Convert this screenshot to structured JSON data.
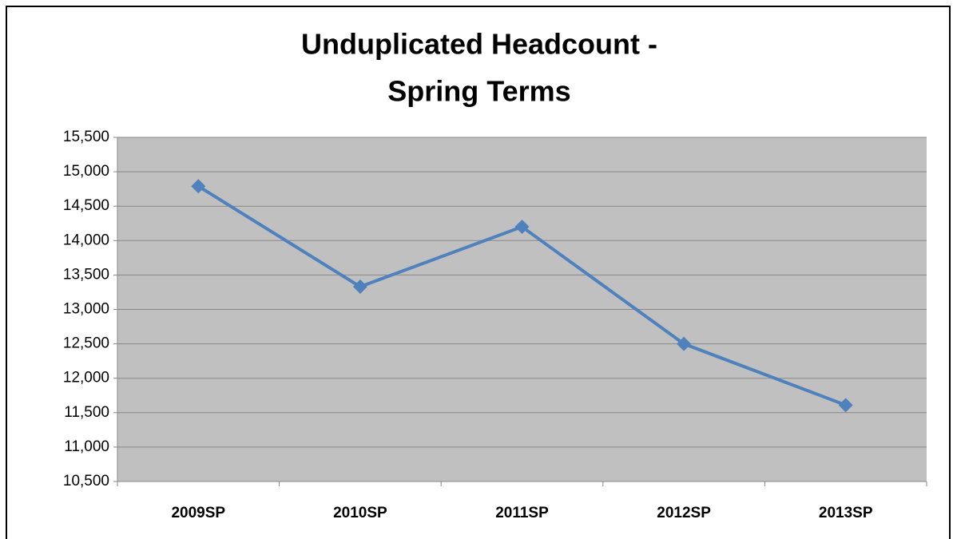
{
  "chart_data": {
    "type": "line",
    "title": [
      "Unduplicated Headcount -",
      "Spring Terms"
    ],
    "categories": [
      "2009SP",
      "2010SP",
      "2011SP",
      "2012SP",
      "2013SP"
    ],
    "series": [
      {
        "name": "Unduplicated Headcount",
        "color": "#4f81bd",
        "values": [
          14790,
          13330,
          14200,
          12500,
          11610
        ]
      }
    ],
    "ylim": [
      10500,
      15500
    ],
    "yticks": [
      {
        "value": 10500,
        "label": "10,500"
      },
      {
        "value": 11000,
        "label": "11,000"
      },
      {
        "value": 11500,
        "label": "11,500"
      },
      {
        "value": 12000,
        "label": "12,000"
      },
      {
        "value": 12500,
        "label": "12,500"
      },
      {
        "value": 13000,
        "label": "13,000"
      },
      {
        "value": 13500,
        "label": "13,500"
      },
      {
        "value": 14000,
        "label": "14,000"
      },
      {
        "value": 14500,
        "label": "14,500"
      },
      {
        "value": 15000,
        "label": "15,000"
      },
      {
        "value": 15500,
        "label": "15,500"
      }
    ],
    "grid": true
  }
}
